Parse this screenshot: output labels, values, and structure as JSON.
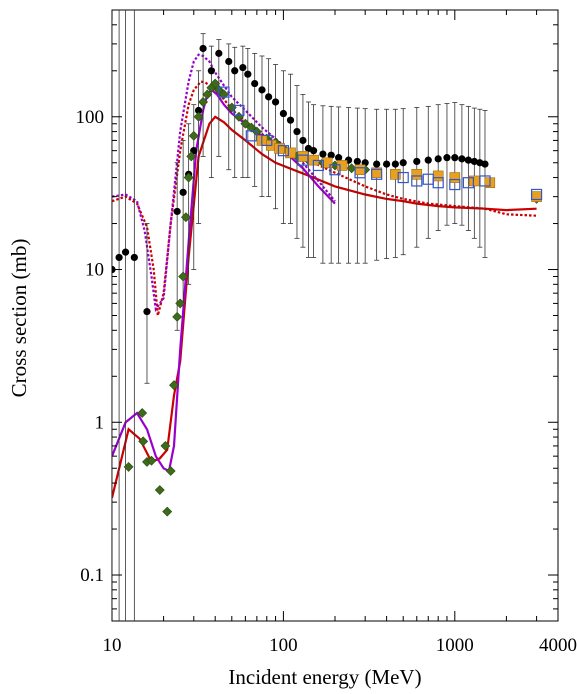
{
  "chart_data": {
    "type": "scatter",
    "title": "",
    "xlabel": "Incident energy (MeV)",
    "ylabel": "Cross section (mb)",
    "xscale": "log",
    "yscale": "log",
    "xlim": [
      10,
      4000
    ],
    "ylim": [
      0.05,
      500
    ],
    "grid": false,
    "legend": "none",
    "x_ticks": [
      {
        "value": 10,
        "label": "10"
      },
      {
        "value": 100,
        "label": "100"
      },
      {
        "value": 1000,
        "label": "1000"
      },
      {
        "value": 4000,
        "label": "4000"
      }
    ],
    "y_ticks": [
      {
        "value": 0.1,
        "label": "0.1"
      },
      {
        "value": 1,
        "label": "1"
      },
      {
        "value": 10,
        "label": "10"
      },
      {
        "value": 100,
        "label": "100"
      }
    ],
    "series": [
      {
        "kind": "curve",
        "style": "solid",
        "color": "#cc0000",
        "points": [
          [
            10,
            0.32
          ],
          [
            12.5,
            0.9
          ],
          [
            14.5,
            0.78
          ],
          [
            17,
            0.55
          ],
          [
            19,
            0.58
          ],
          [
            21,
            0.66
          ],
          [
            23,
            1.5
          ],
          [
            25,
            2.5
          ],
          [
            28,
            12
          ],
          [
            32,
            55
          ],
          [
            37,
            90
          ],
          [
            40,
            100
          ],
          [
            45,
            92
          ],
          [
            50,
            82
          ],
          [
            60,
            70
          ],
          [
            75,
            57
          ],
          [
            90,
            50
          ],
          [
            120,
            44
          ],
          [
            150,
            40
          ],
          [
            200,
            35
          ],
          [
            300,
            31
          ],
          [
            400,
            29
          ],
          [
            500,
            28
          ],
          [
            600,
            27
          ],
          [
            800,
            26
          ],
          [
            1000,
            25.5
          ],
          [
            1500,
            25
          ],
          [
            2000,
            24.5
          ],
          [
            3000,
            25
          ]
        ]
      },
      {
        "kind": "curve",
        "style": "dashed",
        "color": "#cc0000",
        "points": [
          [
            10,
            28
          ],
          [
            12,
            30
          ],
          [
            14,
            27
          ],
          [
            16,
            19
          ],
          [
            17.5,
            10
          ],
          [
            18.5,
            5
          ],
          [
            20,
            7
          ],
          [
            22,
            20
          ],
          [
            25,
            60
          ],
          [
            28,
            120
          ],
          [
            30,
            150
          ],
          [
            33,
            170
          ],
          [
            35,
            168
          ],
          [
            37,
            160
          ],
          [
            40,
            150
          ],
          [
            45,
            130
          ],
          [
            50,
            112
          ],
          [
            60,
            92
          ],
          [
            75,
            77
          ],
          [
            90,
            68
          ],
          [
            120,
            57
          ],
          [
            150,
            50
          ],
          [
            200,
            43
          ],
          [
            300,
            35
          ],
          [
            400,
            31
          ],
          [
            500,
            29
          ],
          [
            700,
            27
          ],
          [
            1000,
            26
          ],
          [
            1500,
            25
          ],
          [
            2000,
            23
          ],
          [
            3000,
            22.5
          ]
        ]
      },
      {
        "kind": "curve",
        "style": "solid",
        "color": "#9900cc",
        "points": [
          [
            10,
            0.6
          ],
          [
            12,
            1.0
          ],
          [
            14,
            1.15
          ],
          [
            16,
            0.9
          ],
          [
            18,
            0.6
          ],
          [
            20,
            0.5
          ],
          [
            21.5,
            0.48
          ],
          [
            23,
            0.7
          ],
          [
            25,
            3
          ],
          [
            28,
            15
          ],
          [
            31,
            60
          ],
          [
            34,
            110
          ],
          [
            36,
            140
          ],
          [
            38,
            150
          ],
          [
            41,
            140
          ],
          [
            45,
            120
          ],
          [
            50,
            105
          ],
          [
            60,
            90
          ],
          [
            75,
            75
          ],
          [
            100,
            60
          ],
          [
            130,
            46
          ],
          [
            160,
            35
          ],
          [
            200,
            27
          ]
        ]
      },
      {
        "kind": "curve",
        "style": "dashed",
        "color": "#9900cc",
        "points": [
          [
            10,
            30
          ],
          [
            12,
            31
          ],
          [
            14,
            28
          ],
          [
            15.5,
            18
          ],
          [
            17,
            9
          ],
          [
            18,
            5.5
          ],
          [
            20,
            6.5
          ],
          [
            22,
            20
          ],
          [
            25,
            80
          ],
          [
            28,
            170
          ],
          [
            30,
            230
          ],
          [
            32,
            255
          ],
          [
            34,
            250
          ],
          [
            37,
            230
          ],
          [
            40,
            195
          ],
          [
            45,
            160
          ],
          [
            50,
            135
          ],
          [
            60,
            110
          ],
          [
            75,
            85
          ],
          [
            100,
            65
          ],
          [
            130,
            50
          ],
          [
            160,
            38
          ],
          [
            200,
            28
          ]
        ]
      },
      {
        "kind": "points",
        "marker": "circle",
        "color": "#000000",
        "points": [
          [
            10,
            10
          ],
          [
            11,
            12
          ],
          [
            12,
            13
          ],
          [
            13.5,
            12
          ],
          [
            16,
            5.3
          ],
          [
            24,
            24
          ],
          [
            26,
            32
          ],
          [
            28,
            42
          ],
          [
            30,
            60
          ],
          [
            32,
            110
          ],
          [
            34,
            280
          ],
          [
            38,
            200
          ],
          [
            42,
            260
          ],
          [
            48,
            230
          ],
          [
            52,
            200
          ],
          [
            58,
            210
          ],
          [
            62,
            190
          ],
          [
            68,
            165
          ],
          [
            75,
            150
          ],
          [
            82,
            135
          ],
          [
            90,
            125
          ],
          [
            100,
            105
          ],
          [
            110,
            95
          ],
          [
            120,
            80
          ],
          [
            130,
            70
          ],
          [
            140,
            62
          ],
          [
            150,
            60
          ],
          [
            170,
            57
          ],
          [
            190,
            56
          ],
          [
            210,
            54
          ],
          [
            240,
            52
          ],
          [
            270,
            51
          ],
          [
            300,
            50
          ],
          [
            350,
            49
          ],
          [
            400,
            49
          ],
          [
            450,
            49
          ],
          [
            500,
            50
          ],
          [
            600,
            51
          ],
          [
            700,
            52
          ],
          [
            800,
            53
          ],
          [
            900,
            54
          ],
          [
            1000,
            54
          ],
          [
            1100,
            53
          ],
          [
            1200,
            52
          ],
          [
            1300,
            51
          ],
          [
            1400,
            50
          ],
          [
            1500,
            49
          ]
        ],
        "err_lo": [
          0.001,
          0.001,
          0.001,
          0.001,
          1.8,
          4,
          6,
          8,
          10,
          20,
          55,
          40,
          55,
          45,
          40,
          40,
          40,
          35,
          30,
          30,
          25,
          20,
          20,
          16,
          14,
          12,
          12,
          11,
          11,
          11,
          11,
          11,
          11,
          11.5,
          11.8,
          12,
          12.5,
          14,
          16,
          18,
          19.5,
          20,
          19.5,
          18,
          16,
          14,
          12
        ],
        "err_hi": [
          800,
          800,
          800,
          800,
          20,
          50,
          70,
          90,
          120,
          200,
          350,
          290,
          320,
          300,
          285,
          290,
          280,
          260,
          250,
          240,
          220,
          200,
          190,
          160,
          140,
          125,
          120,
          118,
          117,
          116,
          115,
          114,
          113,
          112,
          112,
          112,
          113,
          115,
          117,
          120,
          122,
          124,
          120,
          117,
          114,
          112,
          110
        ]
      },
      {
        "kind": "points",
        "marker": "diamond",
        "color": "#3d6b1a",
        "points": [
          [
            12.5,
            0.51
          ],
          [
            15,
            1.15
          ],
          [
            15.2,
            0.75
          ],
          [
            16,
            0.55
          ],
          [
            17,
            0.56
          ],
          [
            19,
            0.36
          ],
          [
            20.5,
            0.7
          ],
          [
            21,
            0.26
          ],
          [
            22,
            0.48
          ],
          [
            23,
            1.75
          ],
          [
            24,
            4.9
          ],
          [
            25,
            6
          ],
          [
            26,
            9
          ],
          [
            27,
            22
          ],
          [
            28,
            40
          ],
          [
            29,
            55
          ],
          [
            30,
            75
          ],
          [
            32,
            100
          ],
          [
            34,
            125
          ],
          [
            36,
            140
          ],
          [
            38,
            155
          ],
          [
            40,
            165
          ],
          [
            42,
            150
          ],
          [
            45,
            140
          ],
          [
            50,
            115
          ],
          [
            55,
            100
          ],
          [
            60,
            90
          ],
          [
            65,
            85
          ],
          [
            70,
            80
          ],
          [
            80,
            72
          ],
          [
            90,
            68
          ],
          [
            100,
            62
          ],
          [
            120,
            55
          ],
          [
            140,
            52
          ],
          [
            170,
            50
          ],
          [
            200,
            48
          ],
          [
            250,
            46
          ],
          [
            300,
            45
          ],
          [
            3000,
            29
          ]
        ]
      },
      {
        "kind": "points",
        "marker": "square",
        "color": "#e8a020",
        "points": [
          [
            75,
            70
          ],
          [
            85,
            65
          ],
          [
            95,
            62
          ],
          [
            110,
            58
          ],
          [
            130,
            55
          ],
          [
            150,
            52
          ],
          [
            180,
            50
          ],
          [
            220,
            48
          ],
          [
            280,
            45
          ],
          [
            350,
            43
          ],
          [
            450,
            42
          ],
          [
            600,
            42
          ],
          [
            800,
            41
          ],
          [
            1000,
            40
          ],
          [
            1300,
            38
          ],
          [
            1600,
            37
          ],
          [
            3000,
            30
          ]
        ]
      },
      {
        "kind": "points",
        "marker": "open-square",
        "color": "#3355cc",
        "points": [
          [
            45,
            145
          ],
          [
            55,
            110
          ],
          [
            65,
            75
          ],
          [
            80,
            70
          ],
          [
            100,
            60
          ],
          [
            130,
            52
          ],
          [
            160,
            48
          ],
          [
            200,
            45
          ],
          [
            280,
            43
          ],
          [
            350,
            42
          ],
          [
            500,
            40
          ],
          [
            600,
            38
          ],
          [
            700,
            39
          ],
          [
            800,
            37
          ],
          [
            1000,
            36
          ],
          [
            1200,
            37
          ],
          [
            1500,
            38
          ],
          [
            3000,
            31
          ]
        ]
      }
    ]
  }
}
